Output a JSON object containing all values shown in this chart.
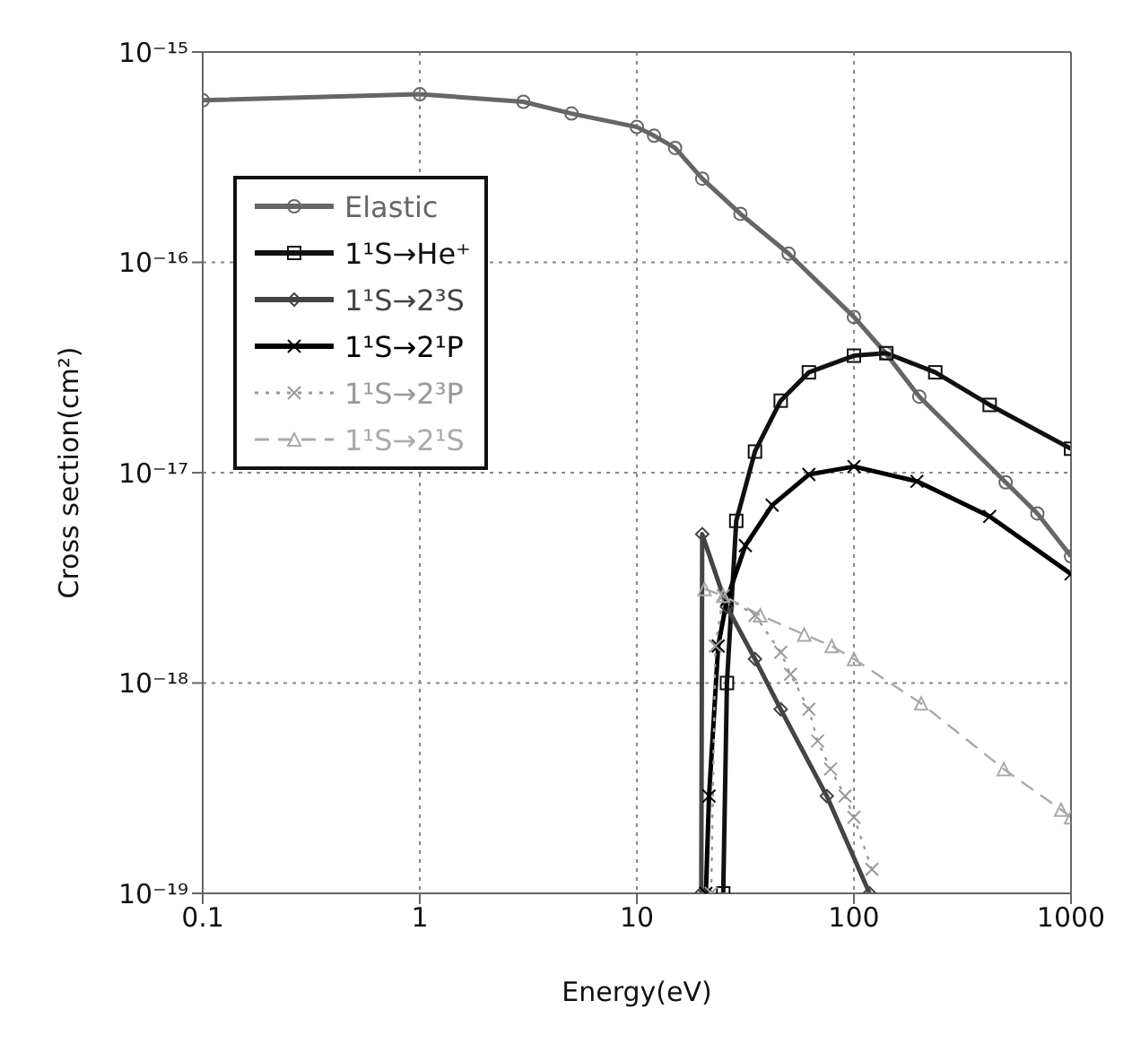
{
  "chart_data": {
    "type": "line",
    "xlabel": "Energy(eV)",
    "ylabel": "Cross section(cm²)",
    "log": "xy",
    "xlim": [
      0.1,
      1000
    ],
    "ylim": [
      1e-19,
      1e-15
    ],
    "xticks": [
      0.1,
      1,
      10,
      100,
      1000
    ],
    "yticks": [
      {
        "value": 1e-19,
        "label": "10⁻¹⁹"
      },
      {
        "value": 1e-18,
        "label": "10⁻¹⁸"
      },
      {
        "value": 1e-17,
        "label": "10⁻¹⁷"
      },
      {
        "value": 1e-16,
        "label": "10⁻¹⁶"
      },
      {
        "value": 1e-15,
        "label": "10⁻¹⁵"
      }
    ],
    "grid": true,
    "legend": "top left",
    "series": [
      {
        "name": "Elastic",
        "color": "#666666",
        "marker": "circle",
        "line_style": "solid",
        "x": [
          0.1,
          1,
          3,
          5,
          10,
          12,
          15,
          20,
          30,
          50,
          100,
          140,
          200,
          500,
          700,
          1000
        ],
        "values": [
          5.9e-16,
          6.3e-16,
          5.8e-16,
          5.1e-16,
          4.4e-16,
          4e-16,
          3.5e-16,
          2.5e-16,
          1.7e-16,
          1.1e-16,
          5.5e-17,
          3.7e-17,
          2.3e-17,
          9e-18,
          6.4e-18,
          4e-18
        ]
      },
      {
        "name": "1¹S→He⁺",
        "color": "#111111",
        "marker": "square",
        "line_style": "solid",
        "x": [
          25,
          26,
          28.7,
          35,
          46,
          62,
          100,
          141,
          237,
          422,
          1000
        ],
        "values": [
          1e-19,
          1e-18,
          5.9e-18,
          1.26e-17,
          2.2e-17,
          3e-17,
          3.6e-17,
          3.7e-17,
          3e-17,
          2.1e-17,
          1.3e-17
        ]
      },
      {
        "name": "1¹S→2³S",
        "color": "#444444",
        "marker": "diamond",
        "line_style": "solid",
        "x": [
          19.8,
          20,
          26,
          35,
          46,
          75,
          118
        ],
        "values": [
          1e-19,
          5.1e-18,
          2.3e-18,
          1.3e-18,
          7.5e-19,
          2.9e-19,
          1e-19
        ]
      },
      {
        "name": "1¹S→2¹P",
        "color": "#000000",
        "marker": "cross",
        "line_style": "solid",
        "x": [
          20.8,
          21.5,
          23.7,
          26,
          31.6,
          42,
          62,
          100,
          195,
          422,
          1000
        ],
        "values": [
          1e-19,
          2.9e-19,
          1.5e-18,
          2.5e-18,
          4.5e-18,
          7e-18,
          9.8e-18,
          1.07e-17,
          9.1e-18,
          6.2e-18,
          3.3e-18
        ]
      },
      {
        "name": "1¹S→2³P",
        "color": "#999999",
        "marker": "cross",
        "line_style": "dotted",
        "x": [
          22,
          23,
          25,
          35,
          46,
          51,
          62,
          68,
          78,
          91,
          100,
          121
        ],
        "values": [
          1e-19,
          1.5e-18,
          2.6e-18,
          2.1e-18,
          1.4e-18,
          1.1e-18,
          7.5e-19,
          5.3e-19,
          3.9e-19,
          2.9e-19,
          2.3e-19,
          1.3e-19
        ]
      },
      {
        "name": "1¹S→2¹S",
        "color": "#aaaaaa",
        "marker": "triangle",
        "line_style": "dashed",
        "x": [
          20.5,
          25,
          37,
          59,
          79,
          100,
          204,
          490,
          900,
          1000
        ],
        "values": [
          2.8e-18,
          2.6e-18,
          2.1e-18,
          1.7e-18,
          1.5e-18,
          1.3e-18,
          8e-19,
          3.9e-19,
          2.5e-19,
          2.3e-19
        ]
      }
    ]
  }
}
